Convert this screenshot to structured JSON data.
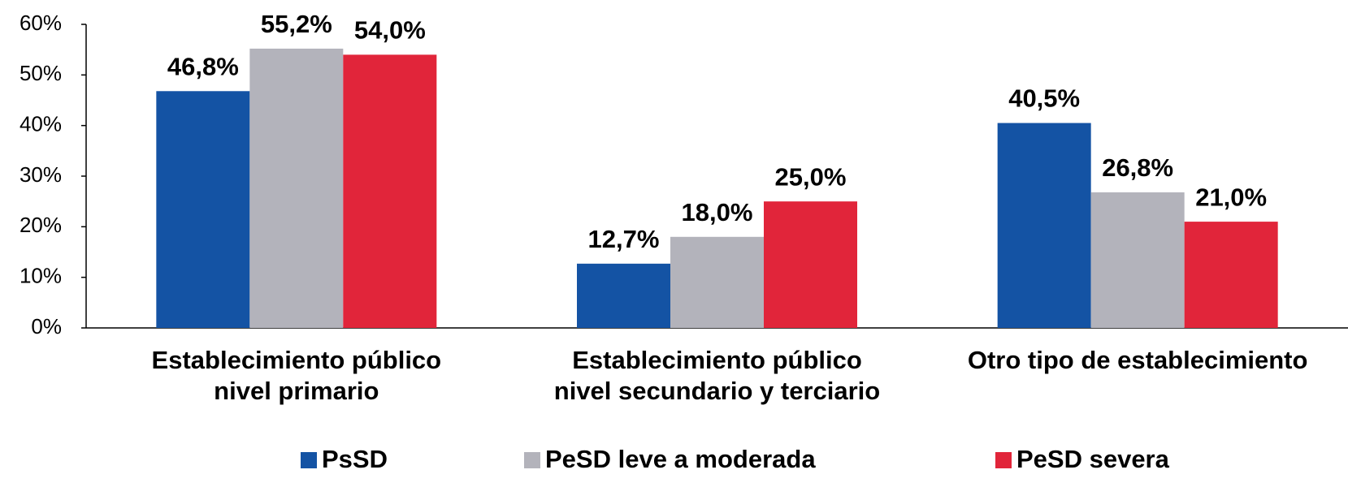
{
  "chart_data": {
    "type": "bar",
    "categories": [
      [
        "Establecimiento público",
        "nivel primario"
      ],
      [
        "Establecimiento público",
        "nivel secundario y terciario"
      ],
      [
        "Otro tipo de establecimiento"
      ]
    ],
    "series": [
      {
        "name": "PsSD",
        "color": "#1453a4",
        "values": [
          46.8,
          12.7,
          40.5
        ],
        "value_labels": [
          "46,8%",
          "12,7%",
          "40,5%"
        ]
      },
      {
        "name": "PeSD leve a moderada",
        "color": "#b3b3bb",
        "values": [
          55.2,
          18.0,
          26.8
        ],
        "value_labels": [
          "55,2%",
          "18,0%",
          "26,8%"
        ]
      },
      {
        "name": "PeSD severa",
        "color": "#e1253a",
        "values": [
          54.0,
          25.0,
          21.0
        ],
        "value_labels": [
          "54,0%",
          "25,0%",
          "21,0%"
        ]
      }
    ],
    "ylim": [
      0,
      60
    ],
    "yticks": [
      {
        "value": 0,
        "label": "0%"
      },
      {
        "value": 10,
        "label": "10%"
      },
      {
        "value": 20,
        "label": "20%"
      },
      {
        "value": 30,
        "label": "30%"
      },
      {
        "value": 40,
        "label": "40%"
      },
      {
        "value": 50,
        "label": "50%"
      },
      {
        "value": 60,
        "label": "60%"
      }
    ],
    "grid": false,
    "legend": "bottom"
  }
}
